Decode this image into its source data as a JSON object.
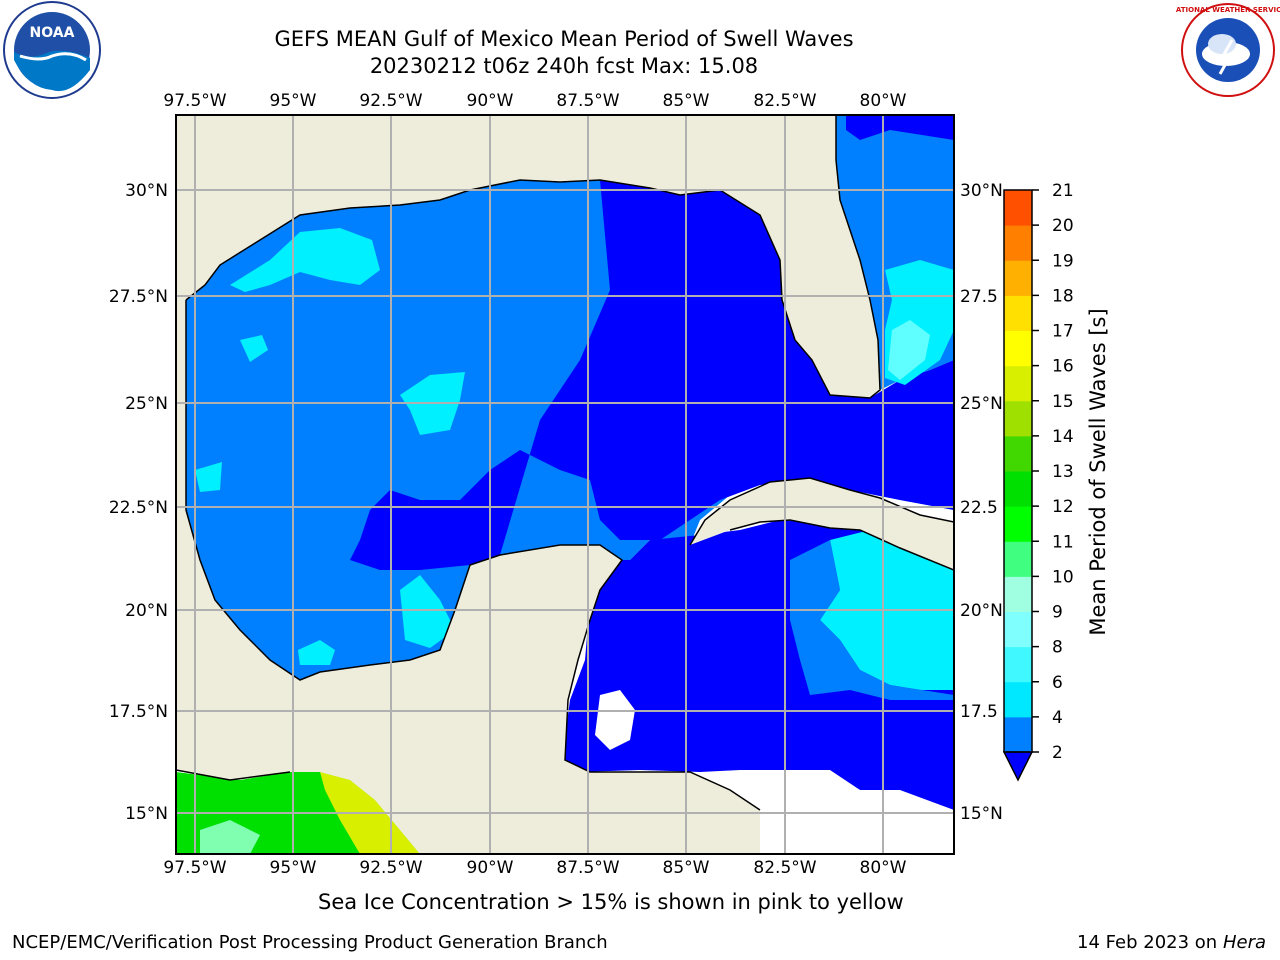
{
  "title": {
    "line1": "GEFS MEAN Gulf of Mexico Mean Period of Swell Waves",
    "line2": "20230212 t06z 240h fcst   Max: 15.08"
  },
  "axes": {
    "lon_labels": [
      "97.5°W",
      "95°W",
      "92.5°W",
      "90°W",
      "87.5°W",
      "85°W",
      "82.5°W",
      "80°W"
    ],
    "lat_labels_left": [
      "30°N",
      "27.5°N",
      "25°N",
      "22.5°N",
      "20°N",
      "17.5°N",
      "15°N"
    ],
    "lat_labels_right": [
      "30°N",
      "27.5",
      "25°N",
      "22.5",
      "20°N",
      "17.5",
      "15°N"
    ]
  },
  "colorbar": {
    "label": "Mean Period of Swell Waves [s]",
    "ticks": [
      "2",
      "4",
      "6",
      "8",
      "9",
      "10",
      "11",
      "12",
      "13",
      "14",
      "15",
      "16",
      "17",
      "18",
      "19",
      "20",
      "21"
    ],
    "colors": [
      "#0000ff",
      "#0080ff",
      "#00e8ff",
      "#40f8ff",
      "#80ffff",
      "#a0ffe0",
      "#40ff80",
      "#00ff00",
      "#00e000",
      "#40d800",
      "#a0e000",
      "#d8f000",
      "#ffff00",
      "#ffe000",
      "#ffb000",
      "#ff8000",
      "#ff5000",
      "#ff2000",
      "#ff0000"
    ]
  },
  "map_colors": {
    "land": "#eeeddc",
    "no_data": "#ffffff",
    "deep": "#0000ff",
    "mid": "#0080ff",
    "cyan": "#00f0ff",
    "light_cyan": "#60ffff"
  },
  "note": "Sea Ice Concentration > 15% is shown in pink to yellow",
  "footer": {
    "left": "NCEP/EMC/Verification Post Processing Product Generation Branch",
    "right_date": "14 Feb 2023 on",
    "right_host": "Hera"
  },
  "logos": {
    "noaa": "NOAA",
    "nws": "NATIONAL WEATHER SERVICE"
  }
}
